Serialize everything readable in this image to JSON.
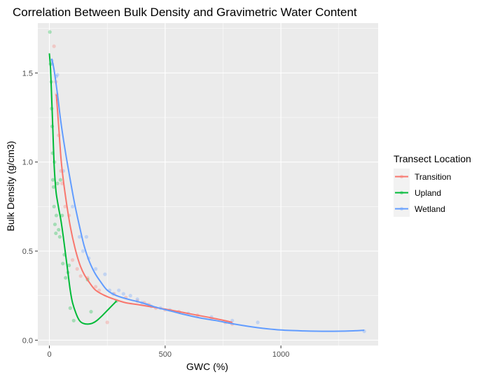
{
  "chart_data": {
    "type": "scatter",
    "title": "Correlation Between Bulk Density and Gravimetric Water Content",
    "xlabel": "GWC (%)",
    "ylabel": "Bulk Density (g/cm3)",
    "xlim": [
      -50,
      1420
    ],
    "ylim": [
      -0.03,
      1.78
    ],
    "x_ticks": [
      0,
      500,
      1000
    ],
    "x_tick_labels": [
      "0",
      "500",
      "1000"
    ],
    "y_ticks": [
      0.0,
      0.5,
      1.0,
      1.5
    ],
    "y_tick_labels": [
      "0.0",
      "0.5",
      "1.0",
      "1.5"
    ],
    "grid": true,
    "background": "#EBEBEB",
    "legend": {
      "title": "Transect Location",
      "position": "right"
    },
    "series": [
      {
        "name": "Transition",
        "color": "#F8766D",
        "points": [
          [
            20,
            1.65
          ],
          [
            28,
            1.45
          ],
          [
            32,
            1.38
          ],
          [
            40,
            1.15
          ],
          [
            50,
            0.95
          ],
          [
            55,
            0.88
          ],
          [
            68,
            0.75
          ],
          [
            85,
            0.7
          ],
          [
            100,
            0.45
          ],
          [
            120,
            0.4
          ],
          [
            135,
            0.36
          ],
          [
            165,
            0.35
          ],
          [
            200,
            0.3
          ],
          [
            215,
            0.28
          ],
          [
            250,
            0.1
          ],
          [
            280,
            0.26
          ],
          [
            330,
            0.24
          ],
          [
            380,
            0.22
          ],
          [
            410,
            0.21
          ],
          [
            430,
            0.2
          ],
          [
            460,
            0.18
          ],
          [
            500,
            0.17
          ],
          [
            560,
            0.16
          ],
          [
            640,
            0.14
          ],
          [
            700,
            0.12
          ],
          [
            760,
            0.1
          ],
          [
            790,
            0.09
          ]
        ],
        "smooth": [
          [
            30,
            1.38
          ],
          [
            40,
            1.2
          ],
          [
            50,
            1.02
          ],
          [
            60,
            0.9
          ],
          [
            75,
            0.76
          ],
          [
            90,
            0.64
          ],
          [
            110,
            0.52
          ],
          [
            130,
            0.43
          ],
          [
            150,
            0.37
          ],
          [
            175,
            0.32
          ],
          [
            200,
            0.28
          ],
          [
            240,
            0.25
          ],
          [
            280,
            0.23
          ],
          [
            330,
            0.21
          ],
          [
            380,
            0.2
          ],
          [
            450,
            0.185
          ],
          [
            520,
            0.17
          ],
          [
            600,
            0.15
          ],
          [
            680,
            0.13
          ],
          [
            740,
            0.115
          ],
          [
            790,
            0.1
          ]
        ]
      },
      {
        "name": "Upland",
        "color": "#00BA38",
        "points": [
          [
            2,
            1.73
          ],
          [
            5,
            1.55
          ],
          [
            8,
            1.45
          ],
          [
            10,
            1.3
          ],
          [
            12,
            1.2
          ],
          [
            14,
            1.05
          ],
          [
            15,
            0.9
          ],
          [
            18,
            0.86
          ],
          [
            20,
            0.75
          ],
          [
            22,
            1.0
          ],
          [
            24,
            0.65
          ],
          [
            28,
            0.6
          ],
          [
            30,
            0.7
          ],
          [
            35,
            0.88
          ],
          [
            40,
            0.62
          ],
          [
            45,
            0.58
          ],
          [
            48,
            0.9
          ],
          [
            55,
            0.7
          ],
          [
            58,
            0.43
          ],
          [
            65,
            0.48
          ],
          [
            70,
            0.35
          ],
          [
            80,
            0.38
          ],
          [
            85,
            0.42
          ],
          [
            90,
            0.18
          ],
          [
            105,
            0.11
          ],
          [
            165,
            0.34
          ],
          [
            180,
            0.16
          ],
          [
            290,
            0.22
          ]
        ],
        "smooth": [
          [
            0,
            1.61
          ],
          [
            5,
            1.52
          ],
          [
            10,
            1.36
          ],
          [
            15,
            1.18
          ],
          [
            20,
            1.0
          ],
          [
            25,
            0.89
          ],
          [
            30,
            0.82
          ],
          [
            40,
            0.74
          ],
          [
            50,
            0.67
          ],
          [
            60,
            0.58
          ],
          [
            70,
            0.48
          ],
          [
            80,
            0.38
          ],
          [
            90,
            0.28
          ],
          [
            100,
            0.21
          ],
          [
            115,
            0.15
          ],
          [
            130,
            0.11
          ],
          [
            145,
            0.095
          ],
          [
            165,
            0.09
          ],
          [
            185,
            0.095
          ],
          [
            205,
            0.11
          ],
          [
            230,
            0.14
          ],
          [
            260,
            0.18
          ],
          [
            290,
            0.22
          ]
        ]
      },
      {
        "name": "Wetland",
        "color": "#619CFF",
        "points": [
          [
            10,
            1.57
          ],
          [
            12,
            1.55
          ],
          [
            30,
            1.48
          ],
          [
            35,
            1.49
          ],
          [
            60,
            0.95
          ],
          [
            100,
            0.75
          ],
          [
            130,
            0.58
          ],
          [
            145,
            0.5
          ],
          [
            160,
            0.58
          ],
          [
            170,
            0.46
          ],
          [
            200,
            0.4
          ],
          [
            240,
            0.37
          ],
          [
            260,
            0.28
          ],
          [
            275,
            0.26
          ],
          [
            300,
            0.28
          ],
          [
            320,
            0.26
          ],
          [
            350,
            0.25
          ],
          [
            380,
            0.23
          ],
          [
            400,
            0.21
          ],
          [
            420,
            0.2
          ],
          [
            440,
            0.19
          ],
          [
            480,
            0.18
          ],
          [
            520,
            0.17
          ],
          [
            600,
            0.15
          ],
          [
            700,
            0.13
          ],
          [
            790,
            0.11
          ],
          [
            900,
            0.1
          ],
          [
            1360,
            0.05
          ]
        ],
        "smooth": [
          [
            10,
            1.58
          ],
          [
            20,
            1.52
          ],
          [
            35,
            1.38
          ],
          [
            50,
            1.22
          ],
          [
            70,
            1.05
          ],
          [
            90,
            0.9
          ],
          [
            110,
            0.76
          ],
          [
            130,
            0.64
          ],
          [
            150,
            0.53
          ],
          [
            170,
            0.45
          ],
          [
            195,
            0.38
          ],
          [
            220,
            0.33
          ],
          [
            250,
            0.28
          ],
          [
            290,
            0.25
          ],
          [
            340,
            0.23
          ],
          [
            400,
            0.21
          ],
          [
            460,
            0.185
          ],
          [
            520,
            0.165
          ],
          [
            580,
            0.145
          ],
          [
            650,
            0.125
          ],
          [
            720,
            0.11
          ],
          [
            800,
            0.09
          ],
          [
            900,
            0.07
          ],
          [
            1000,
            0.057
          ],
          [
            1100,
            0.052
          ],
          [
            1200,
            0.05
          ],
          [
            1300,
            0.052
          ],
          [
            1360,
            0.056
          ]
        ]
      }
    ]
  }
}
